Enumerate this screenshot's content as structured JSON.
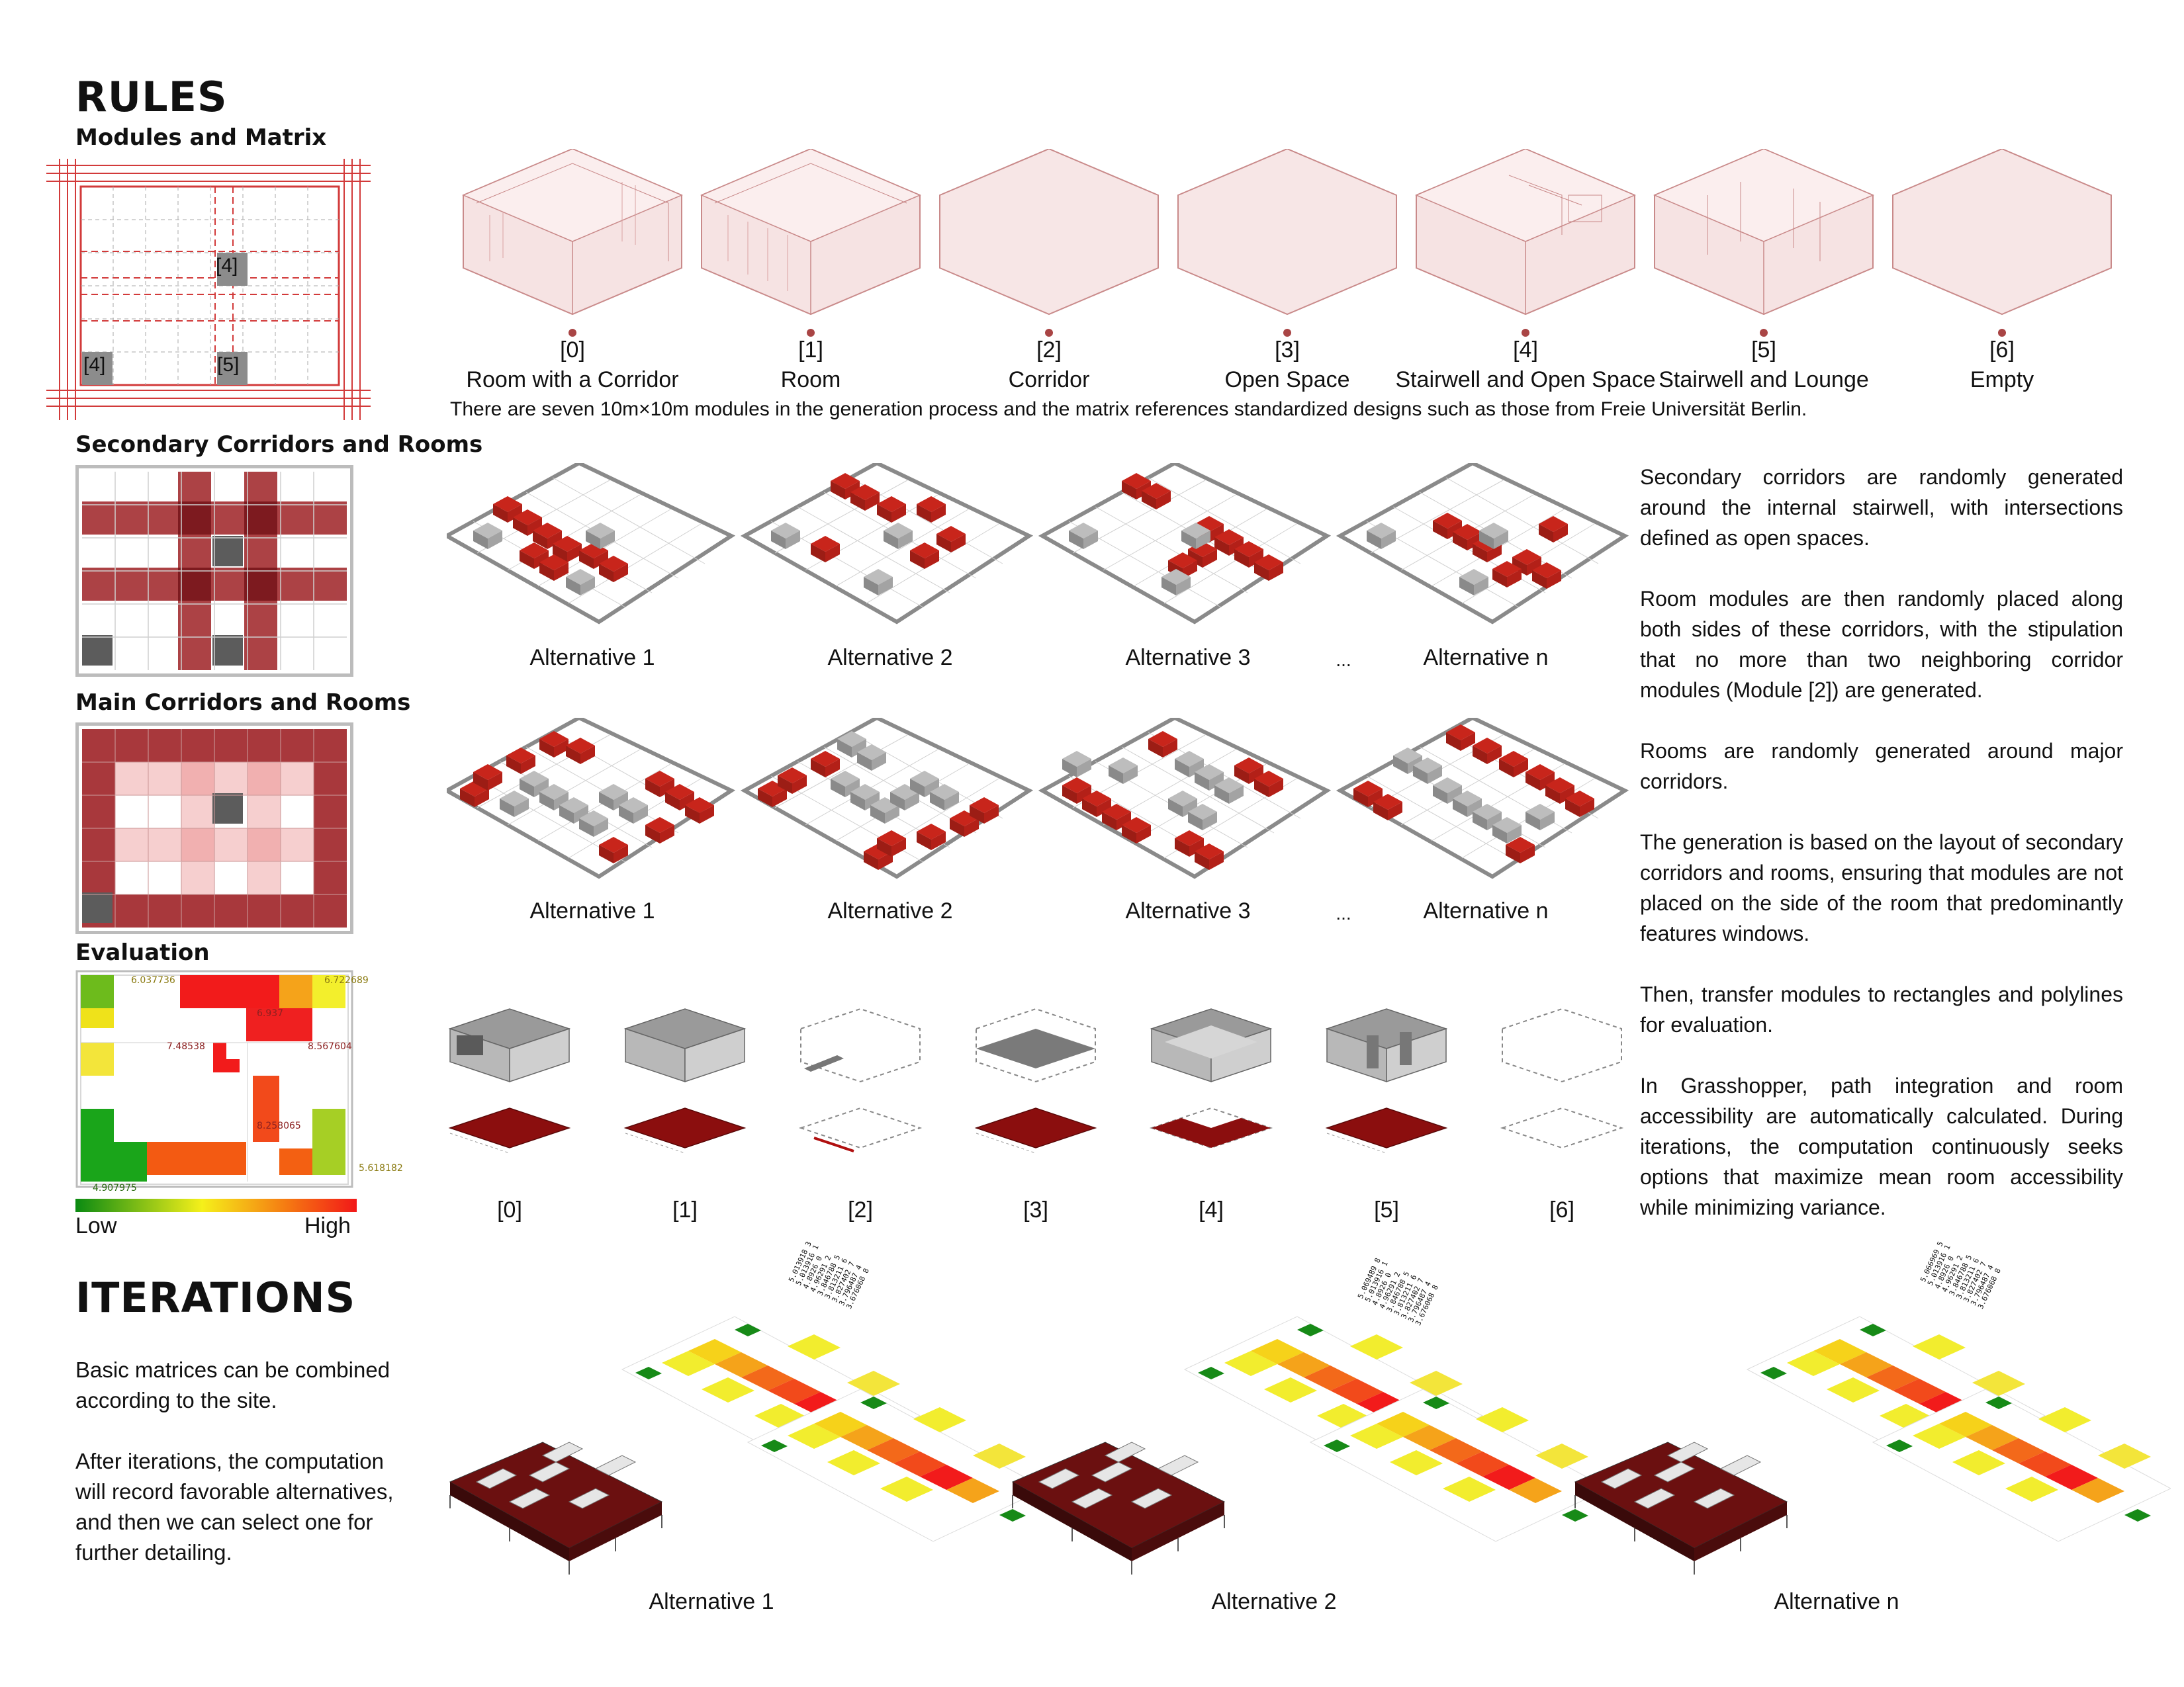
{
  "rules": {
    "title": "RULES",
    "modules_heading": "Modules and Matrix",
    "matrix_labels": [
      "[4]",
      "[4]",
      "[5]"
    ],
    "modules": [
      {
        "index": "[0]",
        "name": "Room with a Corridor"
      },
      {
        "index": "[1]",
        "name": "Room"
      },
      {
        "index": "[2]",
        "name": "Corridor"
      },
      {
        "index": "[3]",
        "name": "Open Space"
      },
      {
        "index": "[4]",
        "name": "Stairwell and Open Space"
      },
      {
        "index": "[5]",
        "name": "Stairwell and Lounge"
      },
      {
        "index": "[6]",
        "name": "Empty"
      }
    ],
    "modules_caption": "There are seven 10m×10m modules in the generation process and the matrix references standardized designs such as those from Freie Universität Berlin.",
    "secondary_heading": "Secondary Corridors and Rooms",
    "main_heading": "Main Corridors and Rooms",
    "evaluation_heading": "Evaluation",
    "alternatives": [
      "Alternative 1",
      "Alternative 2",
      "Alternative 3",
      "...",
      "Alternative n"
    ],
    "eval_values": [
      "6.037736",
      "6.722689",
      "7.48538",
      "8.567604",
      "8.258065",
      "5.618182",
      "4.907975",
      "6.937"
    ],
    "legend_low": "Low",
    "legend_high": "High",
    "eval_indices": [
      "[0]",
      "[1]",
      "[2]",
      "[3]",
      "[4]",
      "[5]",
      "[6]"
    ]
  },
  "description": {
    "p1": "Secondary corridors are randomly generated around the internal stairwell, with intersections defined as open spaces.",
    "p2": "Room modules are then randomly placed along both sides of these corridors, with the stipulation that no more than two neighboring corridor modules (Module [2]) are generated.",
    "p3": "Rooms are randomly generated around major corridors.",
    "p4": "The generation is based on the layout of secondary corridors and rooms, ensuring that modules are not placed on the side of the room that predominantly features windows.",
    "p5": "Then, transfer modules to rectangles and polylines for evaluation.",
    "p6": "In Grasshopper, path integration and room accessibility are automatically calculated. During iterations, the computation continuously seeks options that maximize mean room accessibility while minimizing variance."
  },
  "iterations": {
    "title": "ITERATIONS",
    "p1": "Basic matrices can be combined according to the site.",
    "p2": "After iterations, the computation will record favorable alternatives, and then we can select one for further detailing.",
    "alternatives": [
      "Alternative 1",
      "Alternative 2",
      "Alternative n"
    ],
    "score_lists": [
      [
        "5.013918  3",
        "5.013916  1",
        "4.8926  0",
        "4.96291  2",
        "3.846788  5",
        "3.813211  6",
        "3.827402  7",
        "3.796487  4",
        "3.676068  8"
      ],
      [
        "5.069489  8",
        "5.013916  1",
        "4.8926  0",
        "4.96291  2",
        "3.846788  5",
        "3.813211  6",
        "3.827402  7",
        "3.796487  4",
        "3.676068  8"
      ],
      [
        "5.066969  5",
        "5.013916  1",
        "4.8926  0",
        "4.96291  2",
        "3.846788  5",
        "3.813211  6",
        "3.827402  7",
        "3.796487  4",
        "3.676068  8"
      ]
    ]
  },
  "colors": {
    "dark_red": "#8b1010",
    "red": "#c8251b",
    "pink_fill": "#f6e3e3",
    "pink_line": "#c98a8a",
    "grey": "#8f8f8f"
  }
}
